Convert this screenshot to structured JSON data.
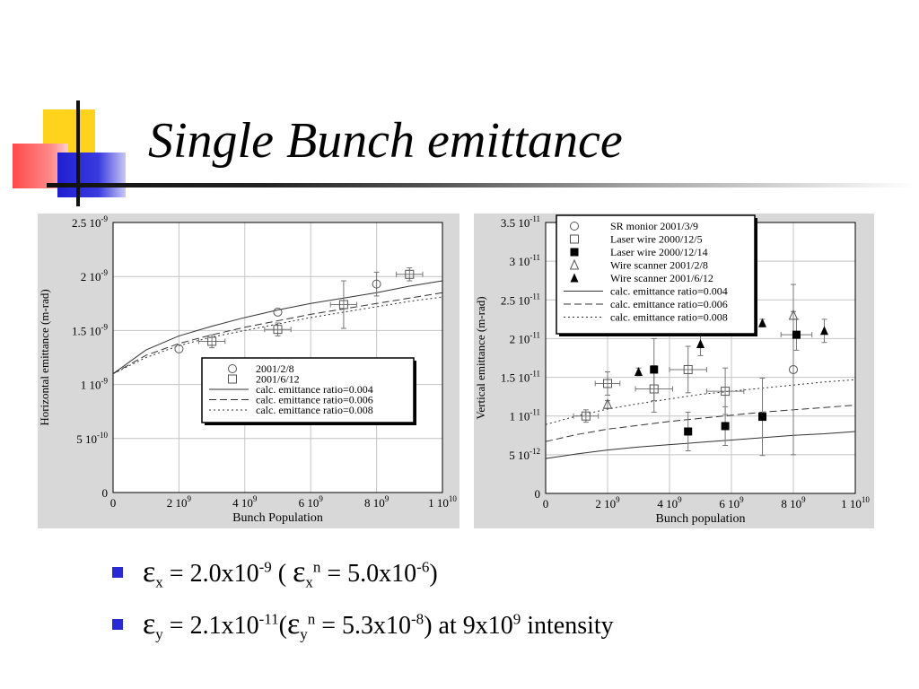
{
  "slide": {
    "title": "Single Bunch emittance",
    "bullets": [
      {
        "symbol": "ε",
        "sub": "x",
        "eq1": " = 2.0x10",
        "exp1": "-9",
        "mid": " ( ",
        "symbol2": "ε",
        "sub2": "x",
        "sup2": "n",
        "eq2": " = 5.0x10",
        "exp2": "-6",
        "tail": ")"
      },
      {
        "symbol": "ε",
        "sub": "y",
        "eq1": " = 2.1x10",
        "exp1": "-11",
        "mid": "(",
        "symbol2": "ε",
        "sub2": "y",
        "sup2": "n",
        "eq2": " = 5.3x10",
        "exp2": "-8",
        "tail": ") at 9x10",
        "exp3": "9",
        "tail2": " intensity"
      }
    ],
    "colors": {
      "bullet": "#2a2ad4",
      "panel": "#d8d8d8",
      "yellow": "#ffd21c",
      "red": "#ff4a4a",
      "blue": "#1f1fd0"
    }
  },
  "chart_data": [
    {
      "type": "scatter",
      "xlabel": "Bunch Population",
      "ylabel": "Horizontal emittance (m-rad)",
      "xlim": [
        0,
        10000000000.0
      ],
      "ylim": [
        0,
        2.5e-09
      ],
      "x_ticks": [
        0,
        2000000000.0,
        4000000000.0,
        6000000000.0,
        8000000000.0,
        10000000000.0
      ],
      "x_tick_labels": [
        {
          "base": "0",
          "exp": ""
        },
        {
          "base": "2 10",
          "exp": "9"
        },
        {
          "base": "4 10",
          "exp": "9"
        },
        {
          "base": "6 10",
          "exp": "9"
        },
        {
          "base": "8 10",
          "exp": "9"
        },
        {
          "base": "1 10",
          "exp": "10"
        }
      ],
      "y_ticks": [
        0,
        5e-10,
        1e-09,
        1.5e-09,
        2e-09,
        2.5e-09
      ],
      "y_tick_labels": [
        {
          "base": "0",
          "exp": ""
        },
        {
          "base": "5 10",
          "exp": "-10"
        },
        {
          "base": "1 10",
          "exp": "-9"
        },
        {
          "base": "1.5 10",
          "exp": "-9"
        },
        {
          "base": "2 10",
          "exp": "-9"
        },
        {
          "base": "2.5 10",
          "exp": "-9"
        }
      ],
      "grid": true,
      "legend_position": "bottom-right",
      "points": [
        {
          "name": "2001/2/8",
          "marker": "circle-open",
          "data": [
            [
              2000000000.0,
              1.33e-09,
              0,
              0
            ],
            [
              5000000000.0,
              1.67e-09,
              0,
              0
            ],
            [
              8000000000.0,
              1.93e-09,
              0,
              1.1e-10
            ]
          ]
        },
        {
          "name": "2001/6/12",
          "marker": "square-open",
          "data": [
            [
              3000000000.0,
              1.4e-09,
              400000000.0,
              6e-11
            ],
            [
              5000000000.0,
              1.51e-09,
              400000000.0,
              6e-11
            ],
            [
              7000000000.0,
              1.74e-09,
              400000000.0,
              2.2e-10
            ],
            [
              9000000000.0,
              2.02e-09,
              400000000.0,
              6e-11
            ]
          ]
        }
      ],
      "curves": [
        {
          "name": "calc.  emittance ratio=0.004",
          "dash": "solid",
          "x": [
            0,
            1000000000.0,
            2000000000.0,
            3000000000.0,
            4000000000.0,
            5000000000.0,
            6000000000.0,
            7000000000.0,
            8000000000.0,
            9000000000.0,
            10000000000.0
          ],
          "y": [
            1.1e-09,
            1.32e-09,
            1.45e-09,
            1.54e-09,
            1.62e-09,
            1.69e-09,
            1.75e-09,
            1.8e-09,
            1.85e-09,
            1.91e-09,
            1.96e-09
          ]
        },
        {
          "name": "calc.  emittance ratio=0.006",
          "dash": "dashed",
          "x": [
            0,
            1000000000.0,
            2000000000.0,
            3000000000.0,
            4000000000.0,
            5000000000.0,
            6000000000.0,
            7000000000.0,
            8000000000.0,
            9000000000.0,
            10000000000.0
          ],
          "y": [
            1.1e-09,
            1.27e-09,
            1.38e-09,
            1.46e-09,
            1.53e-09,
            1.59e-09,
            1.65e-09,
            1.7e-09,
            1.75e-09,
            1.8e-09,
            1.85e-09
          ]
        },
        {
          "name": "calc.  emittance ratio=0.008",
          "dash": "dotted",
          "x": [
            0,
            1000000000.0,
            2000000000.0,
            3000000000.0,
            4000000000.0,
            5000000000.0,
            6000000000.0,
            7000000000.0,
            8000000000.0,
            9000000000.0,
            10000000000.0
          ],
          "y": [
            1.1e-09,
            1.25e-09,
            1.36e-09,
            1.44e-09,
            1.5e-09,
            1.56e-09,
            1.62e-09,
            1.67e-09,
            1.72e-09,
            1.77e-09,
            1.81e-09
          ]
        }
      ]
    },
    {
      "type": "scatter",
      "xlabel": "Bunch population",
      "ylabel": "Vertical emittance (m-rad)",
      "xlim": [
        0,
        10000000000.0
      ],
      "ylim": [
        0,
        3.5e-11
      ],
      "x_ticks": [
        0,
        2000000000.0,
        4000000000.0,
        6000000000.0,
        8000000000.0,
        10000000000.0
      ],
      "x_tick_labels": [
        {
          "base": "0",
          "exp": ""
        },
        {
          "base": "2 10",
          "exp": "9"
        },
        {
          "base": "4 10",
          "exp": "9"
        },
        {
          "base": "6 10",
          "exp": "9"
        },
        {
          "base": "8 10",
          "exp": "9"
        },
        {
          "base": "1 10",
          "exp": "10"
        }
      ],
      "y_ticks": [
        0,
        5e-12,
        1e-11,
        1.5e-11,
        2e-11,
        2.5e-11,
        3e-11,
        3.5e-11
      ],
      "y_tick_labels": [
        {
          "base": "0",
          "exp": ""
        },
        {
          "base": "5 10",
          "exp": "-12"
        },
        {
          "base": "1 10",
          "exp": "-11"
        },
        {
          "base": "1.5 10",
          "exp": "-11"
        },
        {
          "base": "2 10",
          "exp": "-11"
        },
        {
          "base": "2.5 10",
          "exp": "-11"
        },
        {
          "base": "3 10",
          "exp": "-11"
        },
        {
          "base": "3.5 10",
          "exp": "-11"
        }
      ],
      "grid": true,
      "legend_position": "top",
      "points": [
        {
          "name": "SR monior 2001/3/9",
          "marker": "circle-open",
          "data": [
            [
              8000000000.0,
              1.6e-11,
              0,
              1.1e-11
            ]
          ]
        },
        {
          "name": "Laser wire 2000/12/5",
          "marker": "square-open",
          "data": [
            [
              1300000000.0,
              1e-11,
              400000000.0,
              8e-13
            ],
            [
              2000000000.0,
              1.42e-11,
              400000000.0,
              1.5e-12
            ],
            [
              3500000000.0,
              1.35e-11,
              600000000.0,
              3e-12
            ],
            [
              4600000000.0,
              1.6e-11,
              600000000.0,
              3e-12
            ],
            [
              5800000000.0,
              1.32e-11,
              600000000.0,
              3e-12
            ]
          ]
        },
        {
          "name": "Laser wire 2000/12/14",
          "marker": "square-filled",
          "data": [
            [
              3500000000.0,
              1.6e-11,
              0,
              4e-12
            ],
            [
              4600000000.0,
              8e-12,
              0,
              2.5e-12
            ],
            [
              5800000000.0,
              8.7e-12,
              0,
              2.5e-12
            ],
            [
              7000000000.0,
              9.9e-12,
              0,
              5e-12
            ],
            [
              8100000000.0,
              2.05e-11,
              500000000.0,
              2e-12
            ]
          ]
        },
        {
          "name": "Wire scanner 2001/2/8",
          "marker": "triangle-open",
          "data": [
            [
              2000000000.0,
              1.15e-11,
              0,
              5e-13
            ],
            [
              8000000000.0,
              2.3e-11,
              0,
              5e-13
            ]
          ]
        },
        {
          "name": "Wire scanner 2001/6/12",
          "marker": "triangle-filled",
          "data": [
            [
              3000000000.0,
              1.57e-11,
              0,
              5e-13
            ],
            [
              5000000000.0,
              1.93e-11,
              0,
              1.5e-12
            ],
            [
              7000000000.0,
              2.2e-11,
              0,
              5e-13
            ],
            [
              9000000000.0,
              2.1e-11,
              0,
              1.5e-12
            ]
          ]
        }
      ],
      "curves": [
        {
          "name": "calc. emittance ratio=0.004",
          "dash": "solid",
          "x": [
            0,
            1000000000.0,
            2000000000.0,
            3000000000.0,
            4000000000.0,
            5000000000.0,
            6000000000.0,
            7000000000.0,
            8000000000.0,
            9000000000.0,
            10000000000.0
          ],
          "y": [
            4.5e-12,
            5.1e-12,
            5.6e-12,
            6e-12,
            6.3e-12,
            6.6e-12,
            6.9e-12,
            7.2e-12,
            7.5e-12,
            7.7e-12,
            8e-12
          ]
        },
        {
          "name": "calc. emittance ratio=0.006",
          "dash": "dashed",
          "x": [
            0,
            1000000000.0,
            2000000000.0,
            3000000000.0,
            4000000000.0,
            5000000000.0,
            6000000000.0,
            7000000000.0,
            8000000000.0,
            9000000000.0,
            10000000000.0
          ],
          "y": [
            6.7e-12,
            7.6e-12,
            8.3e-12,
            8.8e-12,
            9.3e-12,
            9.7e-12,
            1.01e-11,
            1.05e-11,
            1.08e-11,
            1.11e-11,
            1.14e-11
          ]
        },
        {
          "name": "calc. emittance ratio=0.008",
          "dash": "dotted",
          "x": [
            0,
            1000000000.0,
            2000000000.0,
            3000000000.0,
            4000000000.0,
            5000000000.0,
            6000000000.0,
            7000000000.0,
            8000000000.0,
            9000000000.0,
            10000000000.0
          ],
          "y": [
            8.9e-12,
            1e-11,
            1.09e-11,
            1.16e-11,
            1.22e-11,
            1.28e-11,
            1.32e-11,
            1.36e-11,
            1.4e-11,
            1.44e-11,
            1.47e-11
          ]
        }
      ]
    }
  ]
}
